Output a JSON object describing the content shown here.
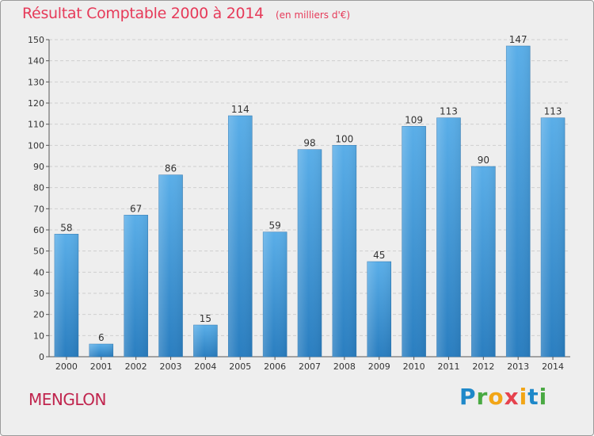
{
  "header": {
    "title": "Résultat Comptable 2000 à 2014",
    "subtitle": "(en milliers d'€)"
  },
  "footer": {
    "place": "MENGLON",
    "logo_letters": [
      "P",
      "r",
      "o",
      "x",
      "i",
      "t",
      "i"
    ],
    "logo_colors": [
      "#1e88c9",
      "#49a942",
      "#f2a516",
      "#e6424d",
      "#f2a516",
      "#1e88c9",
      "#49a942"
    ]
  },
  "colors": {
    "bar_top": "#5aaee8",
    "bar_bottom": "#2a7ec0",
    "title": "#e63a59"
  },
  "chart_data": {
    "type": "bar",
    "categories": [
      "2000",
      "2001",
      "2002",
      "2003",
      "2004",
      "2005",
      "2006",
      "2007",
      "2008",
      "2009",
      "2010",
      "2011",
      "2012",
      "2013",
      "2014"
    ],
    "values": [
      58,
      6,
      67,
      86,
      15,
      114,
      59,
      98,
      100,
      45,
      109,
      113,
      90,
      147,
      113
    ],
    "y_ticks": [
      0,
      10,
      20,
      30,
      40,
      50,
      60,
      70,
      80,
      90,
      100,
      110,
      120,
      130,
      140,
      150
    ],
    "ylim": [
      0,
      150
    ],
    "grid": true,
    "title": "Résultat Comptable 2000 à 2014",
    "subtitle": "(en milliers d'€)"
  }
}
